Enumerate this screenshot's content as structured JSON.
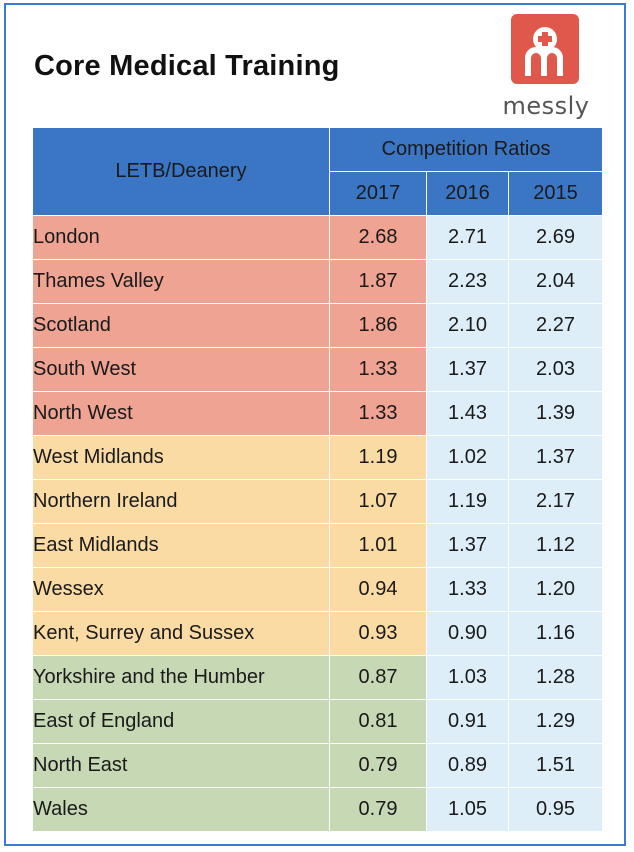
{
  "title": "Core Medical Training",
  "logo": {
    "text": "messly",
    "color": "#e0584b",
    "icon": "messly-logo-icon"
  },
  "table": {
    "header_region": "LETB/Deanery",
    "header_group": "Competition Ratios",
    "years": [
      "2017",
      "2016",
      "2015"
    ]
  },
  "colors": {
    "header": "#3a76c4",
    "high": "#efa393",
    "mid": "#fbdba4",
    "low": "#c7d9b4",
    "pale": "#ddeef9"
  },
  "chart_data": {
    "type": "table",
    "title": "Core Medical Training",
    "columns": [
      "LETB/Deanery",
      "2017",
      "2016",
      "2015"
    ],
    "rows": [
      {
        "region": "London",
        "tier": "high",
        "values": [
          "2.68",
          "2.71",
          "2.69"
        ]
      },
      {
        "region": "Thames Valley",
        "tier": "high",
        "values": [
          "1.87",
          "2.23",
          "2.04"
        ]
      },
      {
        "region": "Scotland",
        "tier": "high",
        "values": [
          "1.86",
          "2.10",
          "2.27"
        ]
      },
      {
        "region": "South West",
        "tier": "high",
        "values": [
          "1.33",
          "1.37",
          "2.03"
        ]
      },
      {
        "region": "North West",
        "tier": "high",
        "values": [
          "1.33",
          "1.43",
          "1.39"
        ]
      },
      {
        "region": "West Midlands",
        "tier": "mid",
        "values": [
          "1.19",
          "1.02",
          "1.37"
        ]
      },
      {
        "region": "Northern Ireland",
        "tier": "mid",
        "values": [
          "1.07",
          "1.19",
          "2.17"
        ]
      },
      {
        "region": "East Midlands",
        "tier": "mid",
        "values": [
          "1.01",
          "1.37",
          "1.12"
        ]
      },
      {
        "region": "Wessex",
        "tier": "mid",
        "values": [
          "0.94",
          "1.33",
          "1.20"
        ]
      },
      {
        "region": "Kent, Surrey and Sussex",
        "tier": "mid",
        "values": [
          "0.93",
          "0.90",
          "1.16"
        ]
      },
      {
        "region": "Yorkshire and the Humber",
        "tier": "low",
        "values": [
          "0.87",
          "1.03",
          "1.28"
        ]
      },
      {
        "region": "East of England",
        "tier": "low",
        "values": [
          "0.81",
          "0.91",
          "1.29"
        ]
      },
      {
        "region": "North East",
        "tier": "low",
        "values": [
          "0.79",
          "0.89",
          "1.51"
        ]
      },
      {
        "region": "Wales",
        "tier": "low",
        "values": [
          "0.79",
          "1.05",
          "0.95"
        ]
      }
    ]
  }
}
